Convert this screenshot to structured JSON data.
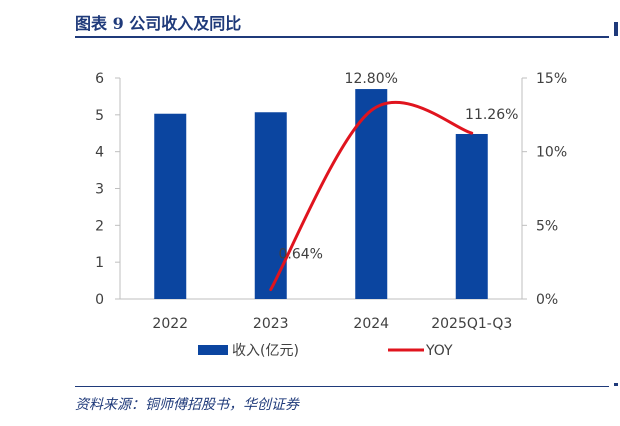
{
  "figure": {
    "title": "图表 9   公司收入及同比",
    "source": "资料来源：铜师傅招股书，华创证券"
  },
  "colors": {
    "bar": "#0b45a0",
    "line": "#e0141e",
    "accent": "#1f3a7a"
  },
  "chart_data": {
    "type": "bar",
    "categories": [
      "2022",
      "2023",
      "2024",
      "2025Q1-Q3"
    ],
    "series": [
      {
        "name": "收入(亿元)",
        "type": "bar",
        "axis": "left",
        "values": [
          5.03,
          5.07,
          5.7,
          4.48
        ]
      },
      {
        "name": "YOY",
        "type": "line",
        "axis": "right",
        "values": [
          null,
          0.64,
          12.8,
          11.26
        ]
      }
    ],
    "data_labels": [
      "",
      "0.64%",
      "12.80%",
      "11.26%"
    ],
    "y_left": {
      "ylim": [
        0,
        6
      ],
      "ticks": [
        "0",
        "1",
        "2",
        "3",
        "4",
        "5",
        "6"
      ]
    },
    "y_right": {
      "ylim": [
        0,
        15
      ],
      "ticks": [
        "0%",
        "5%",
        "10%",
        "15%"
      ]
    },
    "legend_position": "bottom",
    "grid": false
  }
}
